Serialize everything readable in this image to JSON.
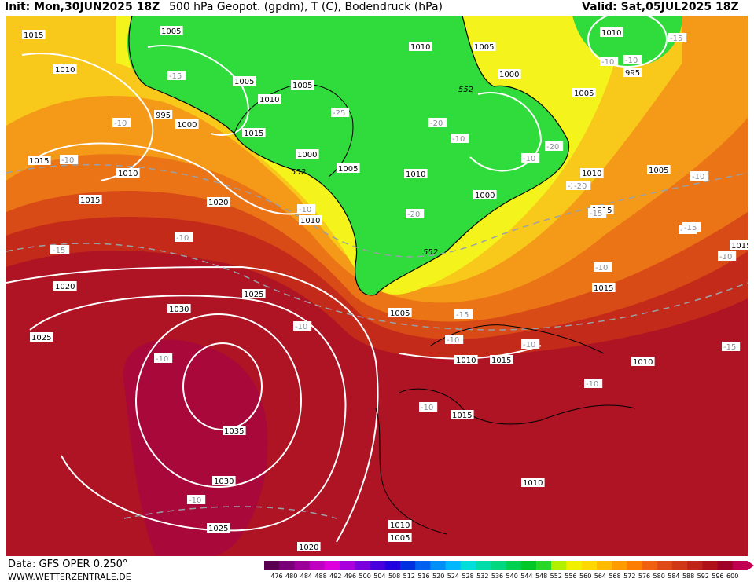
{
  "header": {
    "init": "Init: Mon,30JUN2025 18Z",
    "title": "500 hPa Geopot. (gpdm), T (C), Bodendruck (hPa)",
    "valid": "Valid: Sat,05JUL2025 18Z"
  },
  "footer": {
    "data_source": "Data: GFS OPER 0.250°",
    "website": "WWW.WETTERZENTRALE.DE"
  },
  "colorbar": {
    "ticks": [
      "476",
      "480",
      "484",
      "488",
      "492",
      "496",
      "500",
      "504",
      "508",
      "512",
      "516",
      "520",
      "524",
      "528",
      "532",
      "536",
      "540",
      "544",
      "548",
      "552",
      "556",
      "560",
      "564",
      "568",
      "572",
      "576",
      "580",
      "584",
      "588",
      "592",
      "596",
      "600"
    ],
    "colors": [
      "#5a0050",
      "#7a0077",
      "#9d0099",
      "#c000c0",
      "#dd00dd",
      "#aa00dd",
      "#7a00dd",
      "#4a00dd",
      "#2200dd",
      "#0030e0",
      "#0060f0",
      "#0090f8",
      "#00b8ff",
      "#00dddd",
      "#00dcaa",
      "#00d880",
      "#00d050",
      "#00c828",
      "#28d828",
      "#b0f000",
      "#f0f000",
      "#ffd800",
      "#ffbb00",
      "#ff9c00",
      "#ff7e00",
      "#f06010",
      "#e04a18",
      "#d03818",
      "#c02418",
      "#b01018",
      "#a00028",
      "#c00050"
    ]
  },
  "map": {
    "fill_colors": {
      "green": "#2fdc3c",
      "green_light": "#52e24a",
      "yellow": "#f4f41c",
      "yellow_orange": "#f8c81a",
      "orange": "#f49a18",
      "orange_dark": "#ea7416",
      "red_orange": "#d84a16",
      "red": "#c42a1a",
      "dark_red": "#ae1424",
      "crimson": "#a8083a"
    },
    "contour_552": [
      "552",
      "552",
      "552",
      "552"
    ],
    "pressure_labels": [
      "1015",
      "1010",
      "1005",
      "1005",
      "1010",
      "1010",
      "1005",
      "1005",
      "1000",
      "1005",
      "995",
      "1000",
      "1010",
      "1015",
      "1000",
      "1005",
      "1000",
      "1010",
      "1005",
      "1015",
      "1010",
      "1015",
      "1020",
      "1010",
      "1000",
      "1015",
      "1015",
      "1020",
      "1025",
      "1030",
      "1025",
      "1005",
      "1010",
      "1015",
      "1010",
      "1035",
      "1030",
      "1015",
      "1010",
      "1025",
      "1010",
      "1005",
      "1020",
      "1015",
      "1010",
      "995"
    ],
    "temperature_labels": [
      "-15",
      "-15",
      "-10",
      "-10",
      "-25",
      "-20",
      "-20",
      "-20",
      "-20",
      "-15",
      "-10",
      "-15",
      "-10",
      "-15",
      "-10",
      "-10",
      "-10",
      "-15",
      "-10",
      "-10",
      "-10",
      "-10",
      "-10",
      "-10",
      "-10",
      "-10",
      "-10",
      "-10",
      "-10",
      "-15",
      "-15",
      "-20",
      "-10"
    ]
  }
}
